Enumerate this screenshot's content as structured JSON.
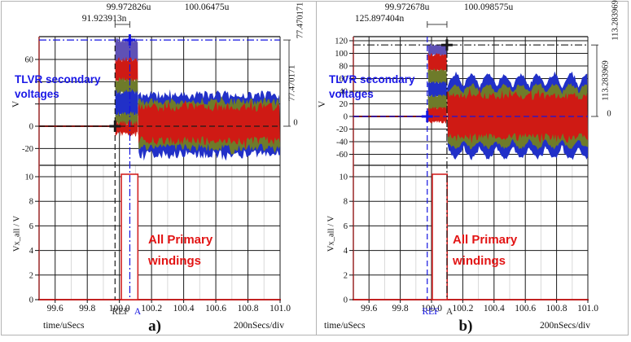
{
  "figure": {
    "background": "#ffffff",
    "border_color": "#b3b3b3"
  },
  "colors": {
    "wave_red": "#cf1a14",
    "wave_olive": "#6e7b2a",
    "wave_blue": "#2130c8",
    "wave_purple": "#5f51b5",
    "trace_dark_red": "#7a1512",
    "axis_spine": "#a03333",
    "x_axis_red": "#c22222",
    "grid_major": "#1a1a1a",
    "grid_minor": "#d9d9d9",
    "bracket": "#444444",
    "annotation_blue": "#1a18e6",
    "annotation_red": "#e21414",
    "pulse_red": "#d22222"
  },
  "chart_data": [
    {
      "id": "a",
      "caption": "a)",
      "type": "area",
      "x_axis": {
        "label": "time/uSecs",
        "scale_label": "200nSecs/div",
        "range": [
          99.5,
          101.0
        ],
        "ticks": [
          99.6,
          99.8,
          100.0,
          100.2,
          100.4,
          100.6,
          100.8,
          101.0
        ],
        "tick_labels": [
          "99.6",
          "99.8",
          "100.0",
          "100.2",
          "100.4",
          "100.6",
          "100.8",
          "101.0"
        ]
      },
      "cursors": {
        "t1": {
          "value": 99.972826,
          "label": "99.972826u",
          "color": "#1a1a1a",
          "style": "dashed"
        },
        "t2": {
          "value": 100.06475,
          "label": "100.06475u",
          "color": "#1414e0",
          "style": "dashdot"
        },
        "delta_label": "91.923913n",
        "ref_marker": {
          "label": "REF",
          "color": "#333333"
        },
        "a_marker": {
          "label": "A",
          "color": "#1414e0"
        }
      },
      "top_panel": {
        "ylabel": "V",
        "annotation": {
          "line1": "TLVR secondary",
          "line2": "voltages"
        },
        "y_range": [
          -35,
          81.5
        ],
        "grid_values": [
          -20,
          0,
          20,
          40,
          60
        ],
        "y_tick_labels": [
          {
            "value": -20,
            "label": "-20"
          },
          {
            "value": 0,
            "label": "0"
          },
          {
            "value": 60,
            "label": "60"
          }
        ],
        "h_cursor": {
          "value": 77.470171,
          "color": "#1414e0",
          "style": "dashdot"
        },
        "zero_line": {
          "value": 0,
          "color": "#1a1a1a",
          "style": "dashed"
        },
        "right_readout": {
          "top_label": "77.470171",
          "delta_label": "77.470171",
          "zero_label": "0"
        },
        "trace_zero_end": 99.974,
        "burst": {
          "t_start": 99.974,
          "t_end": 100.115,
          "edge_noise": 2.5,
          "layers": [
            {
              "color": "purple",
              "y0": 58,
              "y1": 77.5
            },
            {
              "color": "red",
              "y0": 40,
              "y1": 60
            },
            {
              "color": "olive",
              "y0": 29,
              "y1": 42
            },
            {
              "color": "blue",
              "y0": 9,
              "y1": 31
            },
            {
              "color": "olive",
              "y0": 1,
              "y1": 11
            },
            {
              "color": "red",
              "y0": -7,
              "y1": 3
            }
          ]
        },
        "steady": {
          "t_start": 100.115,
          "mod_period": 0,
          "layers": [
            {
              "color": "blue",
              "top": 28,
              "bottom": -25,
              "mod_depth": 0,
              "noise": 4,
              "spike": 5
            },
            {
              "color": "olive",
              "top": 22,
              "bottom": -19,
              "mod_depth": 0,
              "noise": 3.5,
              "spike": 4
            },
            {
              "color": "red",
              "top": 17,
              "bottom": -13,
              "mod_depth": 0,
              "noise": 4,
              "spike": 6
            }
          ]
        }
      },
      "bottom_panel": {
        "ylabel": "Vx_all / V",
        "annotation": {
          "line1": "All Primary",
          "line2": "windings"
        },
        "y_range": [
          0,
          10.93
        ],
        "y_ticks": [
          0,
          2,
          4,
          6,
          8,
          10
        ],
        "pulse": {
          "t_start": 100.012,
          "t_end": 100.115,
          "level": 10.2
        }
      }
    },
    {
      "id": "b",
      "caption": "b)",
      "type": "area",
      "x_axis": {
        "label": "time/uSecs",
        "scale_label": "200nSecs/div",
        "range": [
          99.5,
          101.0
        ],
        "ticks": [
          99.6,
          99.8,
          100.0,
          100.2,
          100.4,
          100.6,
          100.8,
          101.0
        ],
        "tick_labels": [
          "99.6",
          "99.8",
          "100.0",
          "100.2",
          "100.4",
          "100.6",
          "100.8",
          "101.0"
        ]
      },
      "cursors": {
        "t1": {
          "value": 99.972678,
          "label": "99.972678u",
          "color": "#1414e0",
          "style": "dashed"
        },
        "t2": {
          "value": 100.098575,
          "label": "100.098575u",
          "color": "#1a1a1a",
          "style": "dashdot"
        },
        "delta_label": "125.897404n",
        "ref_marker": {
          "label": "REF",
          "color": "#1414e0"
        },
        "a_marker": {
          "label": "A",
          "color": "#333333"
        }
      },
      "top_panel": {
        "ylabel": "V",
        "annotation": {
          "line1": "TLVR secondary",
          "line2": "voltages"
        },
        "y_range": [
          -78,
          126.5
        ],
        "grid_values": [
          -60,
          -40,
          -20,
          0,
          20,
          40,
          60,
          80,
          100,
          120
        ],
        "y_tick_labels": [
          {
            "value": -60,
            "label": "-60"
          },
          {
            "value": -40,
            "label": "-40"
          },
          {
            "value": -20,
            "label": "-20"
          },
          {
            "value": 0,
            "label": "0"
          },
          {
            "value": 20,
            "label": "20"
          },
          {
            "value": 40,
            "label": "40"
          },
          {
            "value": 60,
            "label": "60"
          },
          {
            "value": 80,
            "label": "80"
          },
          {
            "value": 100,
            "label": "100"
          },
          {
            "value": 120,
            "label": "120"
          }
        ],
        "h_cursor": {
          "value": 113.283969,
          "color": "#1a1a1a",
          "style": "dashdot"
        },
        "zero_line": {
          "value": 0,
          "color": "#1414e0",
          "style": "dashed"
        },
        "right_readout": {
          "top_label": "113.283969",
          "delta_label": "113.283969",
          "zero_label": "0"
        },
        "trace_zero_end": 99.976,
        "burst": {
          "t_start": 99.976,
          "t_end": 100.1,
          "edge_noise": 2.5,
          "layers": [
            {
              "color": "purple",
              "y0": 96,
              "y1": 113.5
            },
            {
              "color": "red",
              "y0": 72,
              "y1": 98
            },
            {
              "color": "olive",
              "y0": 52,
              "y1": 74
            },
            {
              "color": "blue",
              "y0": 31,
              "y1": 54
            },
            {
              "color": "olive",
              "y0": 11,
              "y1": 33
            },
            {
              "color": "red",
              "y0": -9,
              "y1": 13
            }
          ]
        },
        "steady": {
          "t_start": 100.1,
          "mod_period": 0.105,
          "layers": [
            {
              "color": "blue",
              "top": 66,
              "bottom": -66,
              "mod_depth": 20,
              "noise": 3,
              "spike": 5
            },
            {
              "color": "olive",
              "top": 50,
              "bottom": -50,
              "mod_depth": 13,
              "noise": 3,
              "spike": 4
            },
            {
              "color": "red",
              "top": 32,
              "bottom": -32,
              "mod_depth": 0,
              "noise": 6,
              "spike": 11
            }
          ]
        }
      },
      "bottom_panel": {
        "ylabel": "Vx_all / V",
        "annotation": {
          "line1": "All Primary",
          "line2": "windings"
        },
        "y_range": [
          0,
          10.93
        ],
        "y_ticks": [
          0,
          2,
          4,
          6,
          8,
          10
        ],
        "pulse": {
          "t_start": 100.005,
          "t_end": 100.1,
          "level": 10.2
        }
      }
    }
  ]
}
